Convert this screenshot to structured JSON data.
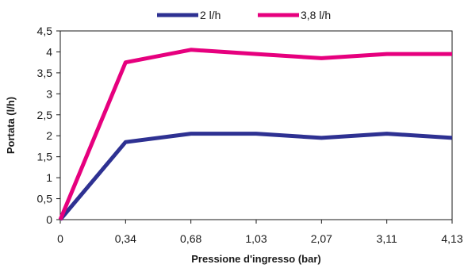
{
  "chart_data": {
    "type": "line",
    "xlabel": "Pressione d'ingresso (bar)",
    "ylabel": "Portata (l/h)",
    "categories": [
      "0",
      "0,34",
      "0,68",
      "1,03",
      "2,07",
      "3,11",
      "4,13"
    ],
    "y_ticks": [
      "0",
      "0,5",
      "1",
      "1,5",
      "2",
      "2,5",
      "3",
      "3,5",
      "4",
      "4,5"
    ],
    "ylim": [
      0,
      4.5
    ],
    "grid": false,
    "legend_position": "top",
    "series": [
      {
        "name": "2 l/h",
        "color": "#2e3192",
        "values": [
          0,
          1.85,
          2.05,
          2.05,
          1.95,
          2.05,
          1.95
        ]
      },
      {
        "name": "3,8 l/h",
        "color": "#e6007e",
        "values": [
          0,
          3.75,
          4.05,
          3.95,
          3.85,
          3.95,
          3.95
        ]
      }
    ]
  }
}
